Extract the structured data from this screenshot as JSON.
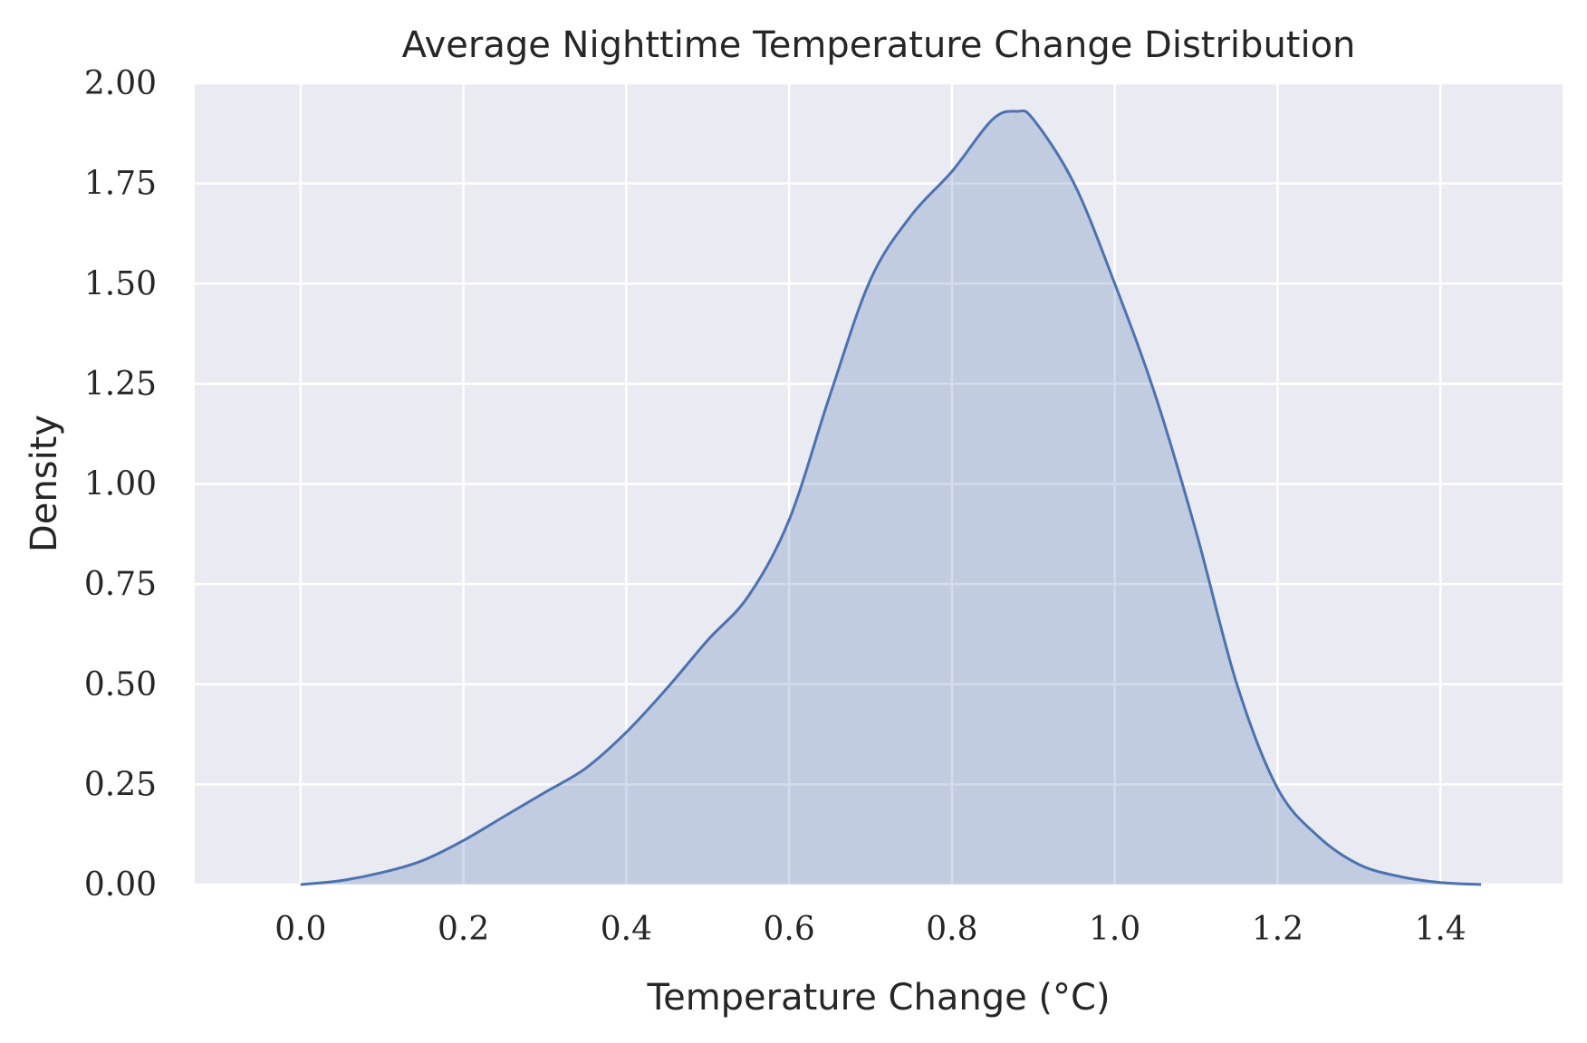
{
  "chart_data": {
    "type": "area",
    "title": "Average Nighttime Temperature Change Distribution",
    "xlabel": "Temperature Change (°C)",
    "ylabel": "Density",
    "xlim": [
      -0.13,
      1.55
    ],
    "ylim": [
      0,
      2.0
    ],
    "x_ticks": [
      0.0,
      0.2,
      0.4,
      0.6,
      0.8,
      1.0,
      1.2,
      1.4
    ],
    "x_tick_labels": [
      "0.0",
      "0.2",
      "0.4",
      "0.6",
      "0.8",
      "1.0",
      "1.2",
      "1.4"
    ],
    "y_ticks": [
      0.0,
      0.25,
      0.5,
      0.75,
      1.0,
      1.25,
      1.5,
      1.75,
      2.0
    ],
    "y_tick_labels": [
      "0.00",
      "0.25",
      "0.50",
      "0.75",
      "1.00",
      "1.25",
      "1.50",
      "1.75",
      "2.00"
    ],
    "grid": true,
    "colors": {
      "line": "#4c72b0",
      "fill": "#c2cbe3",
      "plot_bg": "#eaeaf2",
      "grid": "#ffffff"
    },
    "series": [
      {
        "x": [
          0.0,
          0.05,
          0.1,
          0.15,
          0.2,
          0.25,
          0.3,
          0.35,
          0.4,
          0.45,
          0.5,
          0.55,
          0.6,
          0.65,
          0.7,
          0.75,
          0.8,
          0.85,
          0.88,
          0.9,
          0.95,
          1.0,
          1.05,
          1.1,
          1.15,
          1.2,
          1.25,
          1.3,
          1.35,
          1.4,
          1.45
        ],
        "y": [
          0.0,
          0.01,
          0.03,
          0.06,
          0.11,
          0.17,
          0.23,
          0.29,
          0.38,
          0.49,
          0.61,
          0.72,
          0.91,
          1.22,
          1.51,
          1.67,
          1.78,
          1.91,
          1.93,
          1.91,
          1.75,
          1.5,
          1.22,
          0.88,
          0.5,
          0.24,
          0.12,
          0.05,
          0.02,
          0.005,
          0.0
        ]
      }
    ]
  }
}
